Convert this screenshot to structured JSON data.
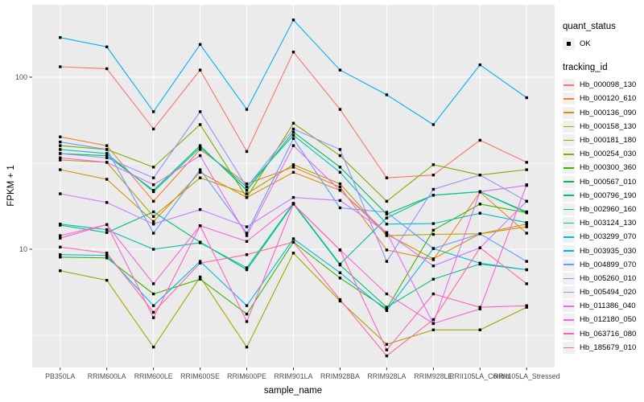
{
  "chart_data": {
    "type": "line",
    "title": "",
    "xlabel": "sample_name",
    "ylabel": "FPKM + 1",
    "y_scale": "log10",
    "ylim": [
      2.05,
      265
    ],
    "y_ticks": [
      100,
      10
    ],
    "y_tick_labels": [
      "100",
      "10"
    ],
    "y_minor_ticks": [
      31.6,
      3.16
    ],
    "grid": true,
    "panel_color": "#ebebeb",
    "gridline_color": "#ffffff",
    "point_marker": {
      "shape": "small-black-square",
      "color": "#000000"
    },
    "legend_position": "right",
    "legend": {
      "quant_status_title": "quant_status",
      "ok_label": "OK",
      "tracking_id_title": "tracking_id"
    },
    "categories": [
      "PB350LA",
      "RRIM600LA",
      "RRIM600LE",
      "RRIM600SE",
      "RRIM600PE",
      "RRIM901LA",
      "RRIM928BA",
      "RRIM928LA",
      "RRIM928LE",
      "RRII105LA_Control",
      "RRII105LA_Stressed"
    ],
    "series": [
      {
        "name": "Hb_000098_130",
        "color": "#F8766D",
        "values": [
          115,
          112,
          50,
          110,
          37,
          140,
          65,
          26,
          27,
          43,
          32
        ]
      },
      {
        "name": "Hb_000120_610",
        "color": "#EA8331",
        "values": [
          45,
          40,
          19,
          38,
          24,
          30,
          23,
          9.9,
          8.7,
          21.5,
          12.4
        ]
      },
      {
        "name": "Hb_000136_090",
        "color": "#D89000",
        "values": [
          29,
          25.5,
          14.5,
          28,
          20,
          28,
          22,
          12.2,
          8.8,
          12.3,
          13.5
        ]
      },
      {
        "name": "Hb_000158_130",
        "color": "#C09B00",
        "values": [
          33,
          32,
          15.5,
          26,
          21,
          31,
          24,
          12,
          12.2,
          12.3,
          14
        ]
      },
      {
        "name": "Hb_000181_180",
        "color": "#A3A500",
        "values": [
          7.5,
          6.6,
          2.7,
          6.9,
          2.7,
          9.5,
          5,
          2.8,
          3.4,
          3.4,
          4.6
        ]
      },
      {
        "name": "Hb_000254_030",
        "color": "#7CAE00",
        "values": [
          40,
          38,
          30,
          53,
          20,
          54,
          35,
          19,
          31,
          27,
          29
        ]
      },
      {
        "name": "Hb_000300_360",
        "color": "#39B600",
        "values": [
          9,
          8.9,
          5.5,
          6.7,
          4.2,
          11,
          6.8,
          4.5,
          12.9,
          18.3,
          16.3
        ]
      },
      {
        "name": "Hb_000567_010",
        "color": "#00BB4E",
        "values": [
          36,
          35,
          22,
          40,
          22,
          48,
          30,
          16,
          20.6,
          21.6,
          16.3
        ]
      },
      {
        "name": "Hb_000796_190",
        "color": "#00BF7D",
        "values": [
          13.8,
          12.5,
          16.5,
          11,
          7.6,
          18.3,
          8.1,
          4.6,
          6.7,
          8.2,
          7.6
        ]
      },
      {
        "name": "Hb_002960_160",
        "color": "#00C1A3",
        "values": [
          14,
          13,
          10,
          10.9,
          7.8,
          18.5,
          8.2,
          15.2,
          20.6,
          21.6,
          16.5
        ]
      },
      {
        "name": "Hb_003124_130",
        "color": "#00BFC4",
        "values": [
          38,
          36,
          21.6,
          39,
          23,
          46,
          28,
          14,
          14.1,
          16.2,
          14.3
        ]
      },
      {
        "name": "Hb_003299_070",
        "color": "#00BAE0",
        "values": [
          9.3,
          9.2,
          4.7,
          8.5,
          4.7,
          11.5,
          7.3,
          4.4,
          10.1,
          8.3,
          7.6
        ]
      },
      {
        "name": "Hb_003935_030",
        "color": "#00B0F6",
        "values": [
          170,
          150,
          63,
          155,
          65,
          215,
          110,
          79,
          53,
          118,
          76
        ]
      },
      {
        "name": "Hb_004899_070",
        "color": "#619CFF",
        "values": [
          42,
          38,
          12.4,
          29,
          12.4,
          44,
          17.4,
          16.4,
          10.1,
          12.3,
          8.5
        ]
      },
      {
        "name": "Hb_005260_010",
        "color": "#9590FF",
        "values": [
          36,
          34,
          26,
          63,
          23,
          50,
          38,
          8.5,
          22.3,
          27,
          19
        ]
      },
      {
        "name": "Hb_005494_020",
        "color": "#C77CFF",
        "values": [
          21,
          18.7,
          14,
          17,
          13.5,
          20,
          19.2,
          12.5,
          8,
          10.2,
          19
        ]
      },
      {
        "name": "Hb_011386_040",
        "color": "#E76BF3",
        "values": [
          34,
          32,
          23.7,
          35,
          12,
          40,
          22,
          12.5,
          3.7,
          21.6,
          23.5
        ]
      },
      {
        "name": "Hb_012180_050",
        "color": "#FA62DB",
        "values": [
          12,
          13.9,
          6.3,
          13.7,
          11.1,
          18.3,
          9.9,
          5.5,
          3.7,
          4.5,
          23.7
        ]
      },
      {
        "name": "Hb_063716_080",
        "color": "#FF61C3",
        "values": [
          11.6,
          13.9,
          4,
          13.7,
          3.8,
          18.3,
          9.9,
          2.6,
          5.5,
          4.6,
          4.7
        ]
      },
      {
        "name": "Hb_185679_010",
        "color": "#FF689F",
        "values": [
          10.3,
          9.5,
          4.3,
          8.3,
          9.3,
          11,
          5.1,
          2.4,
          3.9,
          10.2,
          6.3
        ]
      }
    ]
  }
}
